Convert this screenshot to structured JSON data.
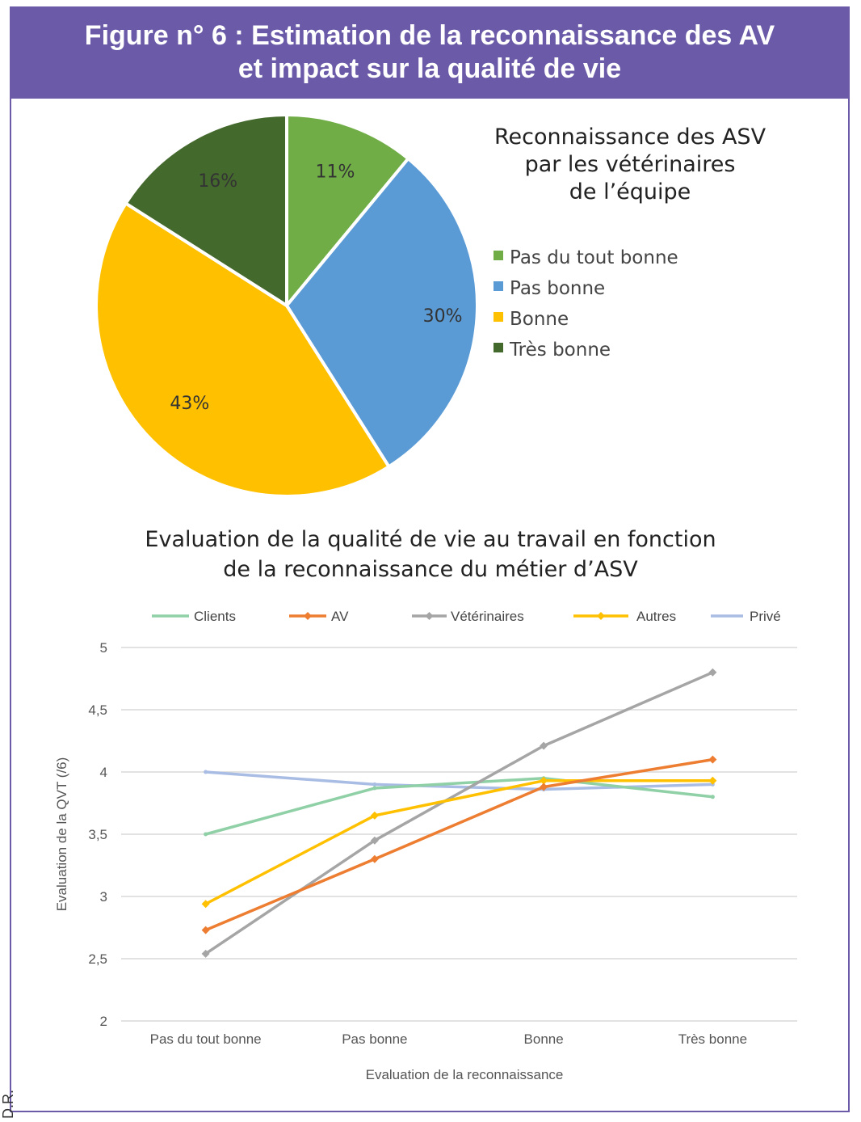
{
  "header": {
    "title_line1": "Figure n° 6 : Estimation de la reconnaissance des AV",
    "title_line2": "et impact sur la qualité de vie"
  },
  "credit": "D.R.",
  "colors": {
    "header_bg": "#6a5aa8",
    "pie": [
      "#70ad47",
      "#5b9bd5",
      "#ffc000",
      "#44692d"
    ],
    "lines": {
      "Clients": "#8fd0a6",
      "AV": "#ed7d31",
      "Vétérinaires": "#a5a5a5",
      "Autres": "#ffc000",
      "Privé": "#a9bde4"
    }
  },
  "chart_data": [
    {
      "type": "pie",
      "title_lines": [
        "Reconnaissance des ASV",
        "par les vétérinaires",
        "de l’équipe"
      ],
      "categories": [
        "Pas du tout bonne",
        "Pas bonne",
        "Bonne",
        "Très bonne"
      ],
      "values": [
        11,
        30,
        43,
        16
      ],
      "labels": [
        "11%",
        "30%",
        "43%",
        "16%"
      ],
      "legend": "right"
    },
    {
      "type": "line",
      "title_lines": [
        "Evaluation de la qualité de vie au travail en fonction",
        "de la reconnaissance du métier d’ASV"
      ],
      "categories": [
        "Pas du tout bonne",
        "Pas bonne",
        "Bonne",
        "Très bonne"
      ],
      "xlabel": "Evaluation de la reconnaissance",
      "ylabel": "Evaluation de la QVT (/6)",
      "ylim": [
        2,
        5
      ],
      "yticks": [
        "2",
        "2,5",
        "3",
        "3,5",
        "4",
        "4,5",
        "5"
      ],
      "grid": true,
      "legend": "top",
      "series": [
        {
          "name": "Clients",
          "values": [
            3.5,
            3.87,
            3.95,
            3.8
          ]
        },
        {
          "name": "AV",
          "values": [
            2.73,
            3.3,
            3.88,
            4.1
          ]
        },
        {
          "name": "Vétérinaires",
          "values": [
            2.54,
            3.45,
            4.21,
            4.8
          ]
        },
        {
          "name": "Autres",
          "values": [
            2.94,
            3.65,
            3.93,
            3.93
          ]
        },
        {
          "name": "Privé",
          "values": [
            4.0,
            3.9,
            3.86,
            3.9
          ]
        }
      ]
    }
  ]
}
